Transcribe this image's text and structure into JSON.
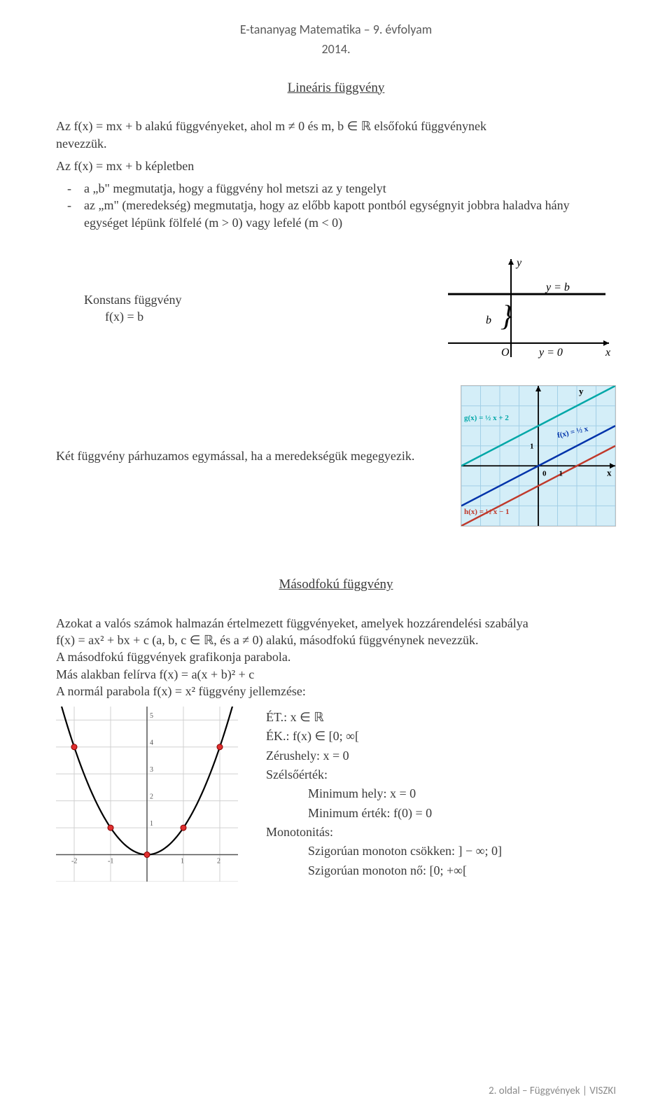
{
  "header": {
    "title": "E-tananyag Matematika – 9. évfolyam",
    "year": "2014."
  },
  "section1": {
    "title": "Lineáris függvény",
    "intro_line1": "Az f(x) = mx + b alakú függvényeket, ahol m ≠ 0 és m, b ∈ ℝ elsőfokú függvénynek",
    "intro_line2": "nevezzük.",
    "formula_intro": "Az f(x) = mx + b képletben",
    "bullet1": "a „b\" megmutatja, hogy a függvény hol metszi az y tengelyt",
    "bullet2": "az „m\" (meredekség) megmutatja, hogy az előbb kapott pontból egységnyit jobbra haladva hány egységet lépünk fölfelé (m > 0) vagy lefelé (m < 0)",
    "konstans_title": "Konstans függvény",
    "konstans_eq": "f(x) = b",
    "konstans_fig": {
      "y_label": "y",
      "x_label": "x",
      "origin_label": "O",
      "b_label": "b",
      "yb_label": "y = b",
      "y0_label": "y = 0",
      "brace_unicode": "}"
    },
    "parallel_text": "Két függvény párhuzamos egymással, ha a meredekségük megegyezik.",
    "parallel_fig": {
      "bg_color": "#d4eef8",
      "grid_color": "#a2cfe6",
      "axis_color": "#000000",
      "g_color": "#00a7a7",
      "f_color": "#0033aa",
      "h_color": "#c0392b",
      "g_label": "g(x) = ½ x + 2",
      "f_label": "f(x) = ½ x",
      "h_label": "h(x) = ½ x − 1",
      "y_label": "y",
      "x_label": "x",
      "tick_1": "1",
      "tick_0": "0",
      "xmin": -4,
      "xmax": 4,
      "ymin": -3,
      "ymax": 4
    }
  },
  "section2": {
    "title": "Másodfokú függvény",
    "para_line1": "Azokat a valós számok halmazán értelmezett függvényeket, amelyek hozzárendelési szabálya",
    "para_line2": "f(x) = ax² + bx + c (a, b, c ∈ ℝ, és a ≠ 0) alakú, másodfokú függvénynek nevezzük.",
    "para_line3": "A másodfokú függvények grafikonja parabola.",
    "para_line4": "Más alakban felírva f(x) = a(x + b)² + c",
    "para_line5": "A normál parabola f(x) = x² függvény jellemzése:",
    "parabola": {
      "xmin": -2.5,
      "xmax": 2.5,
      "ymin": -1,
      "ymax": 5.5,
      "grid_color": "#d0d0d0",
      "axis_color": "#555555",
      "curve_color": "#000000",
      "point_fill": "#e03030",
      "points": [
        [
          -2,
          4
        ],
        [
          -1,
          1
        ],
        [
          0,
          0
        ],
        [
          1,
          1
        ],
        [
          2,
          4
        ]
      ],
      "ticks_y": [
        1,
        2,
        3,
        4,
        5
      ],
      "ticks_x": [
        -2,
        -1,
        1,
        2
      ]
    },
    "props": {
      "et": "ÉT.: x ∈ ℝ",
      "ek": "ÉK.: f(x) ∈ [0; ∞[",
      "zero": "Zérushely: x = 0",
      "extr_title": "Szélsőérték:",
      "min_hely": "Minimum hely: x = 0",
      "min_val": "Minimum érték: f(0) = 0",
      "mono_title": "Monotonitás:",
      "mono_dec": "Szigorúan monoton csökken: ] − ∞; 0]",
      "mono_inc": "Szigorúan monoton nő: [0; +∞["
    }
  },
  "footer": "2. oldal – Függvények | VISZKI"
}
